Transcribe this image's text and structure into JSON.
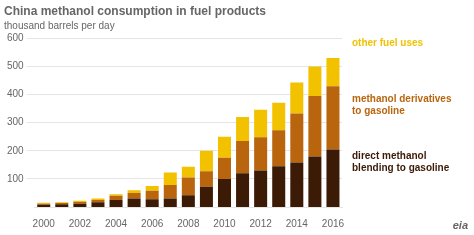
{
  "chart_data": {
    "type": "bar",
    "title": "China methanol consumption in fuel products",
    "subtitle": "thousand barrels per day",
    "categories": [
      "2000",
      null,
      "2002",
      null,
      "2004",
      null,
      "2006",
      null,
      "2008",
      null,
      "2010",
      null,
      "2012",
      null,
      "2014",
      null,
      "2016"
    ],
    "series": [
      {
        "name": "direct methanol\nblending to gasoline",
        "color": "#3b1a06",
        "values": [
          8,
          10,
          12,
          17,
          25,
          30,
          28,
          30,
          42,
          72,
          100,
          120,
          130,
          145,
          158,
          180,
          205
        ]
      },
      {
        "name": "methanol derivatives\nto gasoline",
        "color": "#b8650e",
        "values": [
          4,
          4,
          6,
          8,
          15,
          20,
          30,
          48,
          63,
          55,
          75,
          115,
          118,
          128,
          175,
          215,
          225
        ]
      },
      {
        "name": "other fuel uses",
        "color": "#f2c100",
        "values": [
          3,
          3,
          4,
          5,
          5,
          10,
          17,
          45,
          38,
          73,
          75,
          85,
          98,
          98,
          110,
          105,
          100
        ]
      }
    ],
    "stacked": true,
    "ylim": [
      0,
      600
    ],
    "yticks": [
      100,
      200,
      300,
      400,
      500,
      600
    ],
    "grid": true,
    "annotations": [
      "eia"
    ]
  }
}
